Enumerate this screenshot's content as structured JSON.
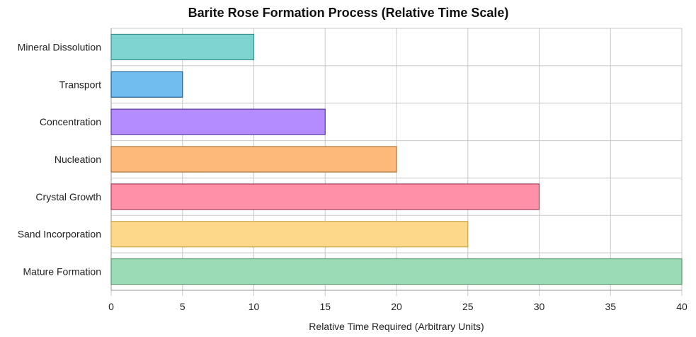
{
  "chart_data": {
    "type": "bar",
    "orientation": "horizontal",
    "title": "Barite Rose Formation Process (Relative Time Scale)",
    "xlabel": "Relative Time Required (Arbitrary Units)",
    "ylabel": "",
    "categories": [
      "Mineral Dissolution",
      "Transport",
      "Concentration",
      "Nucleation",
      "Crystal Growth",
      "Sand Incorporation",
      "Mature Formation"
    ],
    "values": [
      10,
      5,
      15,
      20,
      30,
      25,
      40
    ],
    "colors": [
      "#7fd3d0",
      "#72bdf0",
      "#b48cff",
      "#fdb97a",
      "#ff90a8",
      "#fed88a",
      "#9bdbb5"
    ],
    "border_colors": [
      "#3a8f8c",
      "#1f5f8f",
      "#5b3a9c",
      "#b0733a",
      "#a83a55",
      "#c9a850",
      "#5a9a72"
    ],
    "xlim": [
      0,
      40
    ],
    "xticks": [
      0,
      5,
      10,
      15,
      20,
      25,
      30,
      35,
      40
    ],
    "grid": true,
    "legend": "none"
  }
}
